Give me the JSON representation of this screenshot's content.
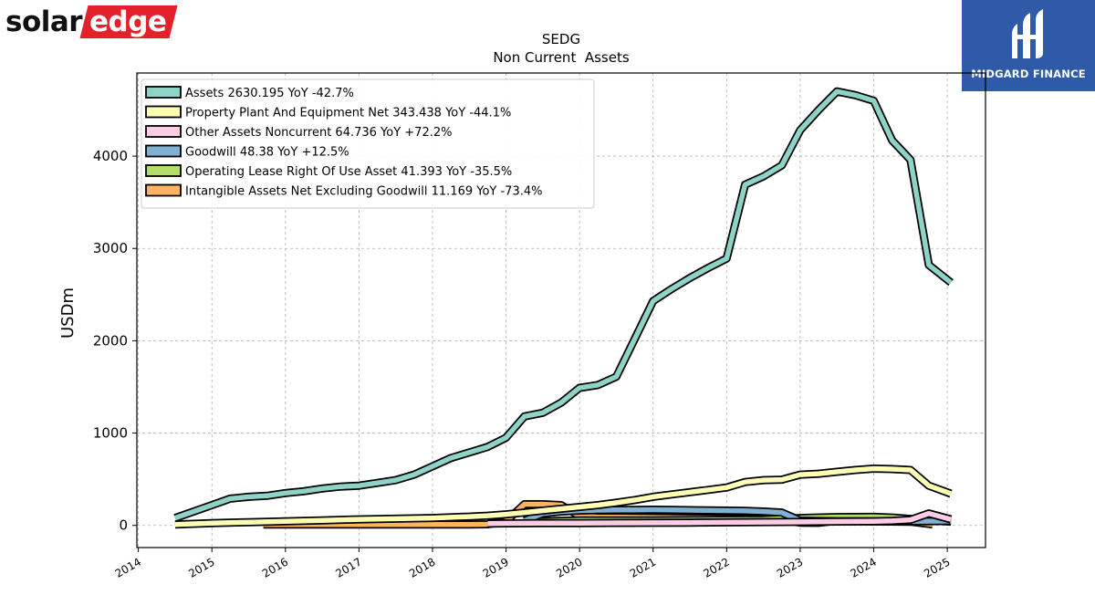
{
  "branding": {
    "left_logo": {
      "text_part1": "solar",
      "text_part2": "edge",
      "accent_color": "#e4202a"
    },
    "right_logo": {
      "text": "MIDGARD FINANCE",
      "background": "#2f5aa8"
    }
  },
  "chart_data": {
    "type": "area",
    "title": "SEDG",
    "subtitle": "Non Current  Assets",
    "ylabel": "USDm",
    "xlabel": "",
    "xlim": [
      2013.98,
      2025.52
    ],
    "ylim": [
      -240,
      4900
    ],
    "x_ticks": [
      "2014",
      "2015",
      "2016",
      "2017",
      "2018",
      "2019",
      "2020",
      "2021",
      "2022",
      "2023",
      "2024",
      "2025"
    ],
    "y_ticks": [
      0,
      1000,
      2000,
      3000,
      4000
    ],
    "grid": true,
    "legend_position": "upper-left",
    "series": [
      {
        "name": "Assets",
        "legend": "Assets  2630.195 YoY -42.7%",
        "color": "#8dd3c7",
        "points": [
          [
            2014.5,
            80
          ],
          [
            2015.0,
            220
          ],
          [
            2015.25,
            290
          ],
          [
            2015.5,
            310
          ],
          [
            2015.75,
            320
          ],
          [
            2016.0,
            350
          ],
          [
            2016.25,
            370
          ],
          [
            2016.5,
            400
          ],
          [
            2016.75,
            420
          ],
          [
            2017.0,
            430
          ],
          [
            2017.25,
            460
          ],
          [
            2017.5,
            490
          ],
          [
            2017.75,
            550
          ],
          [
            2018.0,
            640
          ],
          [
            2018.25,
            730
          ],
          [
            2018.5,
            790
          ],
          [
            2018.75,
            850
          ],
          [
            2019.0,
            950
          ],
          [
            2019.25,
            1180
          ],
          [
            2019.5,
            1220
          ],
          [
            2019.75,
            1330
          ],
          [
            2020.0,
            1490
          ],
          [
            2020.25,
            1520
          ],
          [
            2020.5,
            1610
          ],
          [
            2020.75,
            2020
          ],
          [
            2021.0,
            2430
          ],
          [
            2021.25,
            2560
          ],
          [
            2021.5,
            2680
          ],
          [
            2021.75,
            2790
          ],
          [
            2022.0,
            2890
          ],
          [
            2022.25,
            3690
          ],
          [
            2022.5,
            3780
          ],
          [
            2022.75,
            3900
          ],
          [
            2023.0,
            4280
          ],
          [
            2023.25,
            4500
          ],
          [
            2023.5,
            4700
          ],
          [
            2023.75,
            4660
          ],
          [
            2024.0,
            4600
          ],
          [
            2024.25,
            4170
          ],
          [
            2024.5,
            3960
          ],
          [
            2024.75,
            2820
          ],
          [
            2025.05,
            2630
          ]
        ]
      },
      {
        "name": "Property Plant And Equipment Net",
        "legend": "Property Plant And Equipment Net  343.438 YoY -44.1%",
        "color": "#ffffb3",
        "points": [
          [
            2014.5,
            10
          ],
          [
            2015.0,
            25
          ],
          [
            2015.5,
            35
          ],
          [
            2016.0,
            45
          ],
          [
            2016.5,
            55
          ],
          [
            2017.0,
            65
          ],
          [
            2017.5,
            72
          ],
          [
            2018.0,
            80
          ],
          [
            2018.5,
            95
          ],
          [
            2018.75,
            105
          ],
          [
            2019.0,
            120
          ],
          [
            2019.25,
            140
          ],
          [
            2019.5,
            160
          ],
          [
            2019.75,
            180
          ],
          [
            2020.0,
            200
          ],
          [
            2020.25,
            220
          ],
          [
            2020.5,
            245
          ],
          [
            2020.75,
            275
          ],
          [
            2021.0,
            310
          ],
          [
            2021.25,
            335
          ],
          [
            2021.5,
            360
          ],
          [
            2021.75,
            385
          ],
          [
            2022.0,
            410
          ],
          [
            2022.25,
            470
          ],
          [
            2022.5,
            490
          ],
          [
            2022.75,
            495
          ],
          [
            2023.0,
            550
          ],
          [
            2023.25,
            560
          ],
          [
            2023.5,
            580
          ],
          [
            2023.75,
            600
          ],
          [
            2024.0,
            615
          ],
          [
            2024.25,
            610
          ],
          [
            2024.5,
            600
          ],
          [
            2024.75,
            430
          ],
          [
            2025.05,
            343
          ]
        ]
      },
      {
        "name": "Other Assets Noncurrent",
        "legend": "Other Assets Noncurrent  64.736 YoY +72.2%",
        "color": "#fccde5",
        "points": [
          [
            2018.75,
            20
          ],
          [
            2019.0,
            22
          ],
          [
            2019.5,
            24
          ],
          [
            2020.0,
            25
          ],
          [
            2020.5,
            27
          ],
          [
            2021.0,
            28
          ],
          [
            2021.5,
            30
          ],
          [
            2022.0,
            33
          ],
          [
            2022.5,
            36
          ],
          [
            2023.0,
            38
          ],
          [
            2023.5,
            42
          ],
          [
            2024.0,
            45
          ],
          [
            2024.25,
            50
          ],
          [
            2024.5,
            60
          ],
          [
            2024.75,
            130
          ],
          [
            2025.05,
            65
          ]
        ]
      },
      {
        "name": "Goodwill",
        "legend": "Goodwill  48.38 YoY +12.5%",
        "color": "#80b1d3",
        "points": [
          [
            2019.25,
            50
          ],
          [
            2019.5,
            130
          ],
          [
            2019.75,
            150
          ],
          [
            2020.0,
            160
          ],
          [
            2020.25,
            165
          ],
          [
            2020.5,
            168
          ],
          [
            2020.75,
            168
          ],
          [
            2021.0,
            170
          ],
          [
            2021.25,
            168
          ],
          [
            2021.5,
            165
          ],
          [
            2021.75,
            162
          ],
          [
            2022.0,
            160
          ],
          [
            2022.25,
            158
          ],
          [
            2022.5,
            150
          ],
          [
            2022.75,
            140
          ],
          [
            2023.0,
            52
          ],
          [
            2023.25,
            48
          ],
          [
            2023.5,
            46
          ],
          [
            2024.0,
            45
          ],
          [
            2024.5,
            44
          ],
          [
            2025.05,
            48
          ]
        ]
      },
      {
        "name": "Operating Lease Right Of Use Asset",
        "legend": "Operating Lease Right Of Use Asset  41.393 YoY -35.5%",
        "color": "#b3de69",
        "points": [
          [
            2019.25,
            40
          ],
          [
            2019.5,
            45
          ],
          [
            2019.75,
            50
          ],
          [
            2020.0,
            55
          ],
          [
            2020.5,
            55
          ],
          [
            2021.0,
            55
          ],
          [
            2021.5,
            57
          ],
          [
            2022.0,
            60
          ],
          [
            2022.5,
            62
          ],
          [
            2023.0,
            80
          ],
          [
            2023.5,
            90
          ],
          [
            2024.0,
            92
          ],
          [
            2024.25,
            85
          ],
          [
            2024.5,
            70
          ],
          [
            2024.75,
            55
          ],
          [
            2025.05,
            41
          ]
        ]
      },
      {
        "name": "Intangible Assets Net Excluding Goodwill",
        "legend": "Intangible Assets Net Excluding Goodwill  11.169 YoY -73.4%",
        "color": "#fdb462",
        "points": [
          [
            2015.7,
            10
          ],
          [
            2016.0,
            10
          ],
          [
            2016.5,
            10
          ],
          [
            2017.0,
            10
          ],
          [
            2017.5,
            10
          ],
          [
            2018.0,
            10
          ],
          [
            2018.5,
            10
          ],
          [
            2018.75,
            12
          ],
          [
            2019.0,
            45
          ],
          [
            2019.25,
            230
          ],
          [
            2019.5,
            230
          ],
          [
            2019.75,
            220
          ],
          [
            2020.0,
            100
          ],
          [
            2020.25,
            90
          ],
          [
            2020.5,
            88
          ],
          [
            2021.0,
            85
          ],
          [
            2021.5,
            80
          ],
          [
            2022.0,
            75
          ],
          [
            2022.5,
            70
          ],
          [
            2022.75,
            60
          ],
          [
            2023.0,
            30
          ],
          [
            2023.25,
            28
          ],
          [
            2023.5,
            50
          ],
          [
            2023.75,
            48
          ],
          [
            2024.0,
            45
          ],
          [
            2024.25,
            42
          ],
          [
            2024.5,
            40
          ],
          [
            2024.8,
            11
          ]
        ]
      }
    ]
  }
}
